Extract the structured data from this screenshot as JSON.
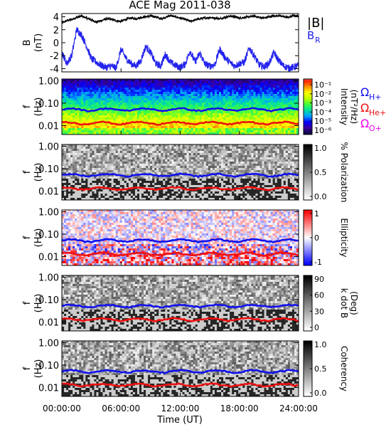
{
  "chart_data": [
    {
      "type": "line",
      "title": "ACE Mag 2011-038",
      "ylabel": "B",
      "ylabel_unit": "(nT)",
      "ylim": [
        -4.5,
        4.5
      ],
      "yticks": [
        "4",
        "2",
        "0",
        "-2",
        "-4"
      ],
      "yticks_values": [
        4,
        2,
        0,
        -2,
        -4
      ],
      "legend_placement": "right",
      "series": [
        {
          "name": "|B|",
          "color": "#000000",
          "x_hours": [
            0,
            0.5,
            1,
            1.5,
            2,
            2.5,
            3,
            3.5,
            4,
            4.5,
            5,
            5.5,
            6,
            6.5,
            7,
            7.5,
            8,
            8.5,
            9,
            9.5,
            10,
            10.5,
            11,
            11.5,
            12,
            12.5,
            13,
            13.5,
            14,
            14.5,
            15,
            15.5,
            16,
            16.5,
            17,
            17.5,
            18,
            18.5,
            19,
            19.5,
            20,
            20.5,
            21,
            21.5,
            22,
            22.5,
            23,
            23.5,
            24
          ],
          "values": [
            3.0,
            3.4,
            3.6,
            3.9,
            4.1,
            3.8,
            3.5,
            3.2,
            3.4,
            3.7,
            3.6,
            3.4,
            3.3,
            3.6,
            3.8,
            3.7,
            3.9,
            4.0,
            4.1,
            4.0,
            3.7,
            3.9,
            4.2,
            4.0,
            3.8,
            3.6,
            3.3,
            3.5,
            3.7,
            3.8,
            3.9,
            3.8,
            3.7,
            3.9,
            4.1,
            4.0,
            3.8,
            3.9,
            4.0,
            4.1,
            3.9,
            3.8,
            4.0,
            4.1,
            4.2,
            4.0,
            3.9,
            4.2,
            4.1
          ]
        },
        {
          "name": "B",
          "subscript": "R",
          "color": "#2222ee",
          "x_hours": [
            0,
            0.5,
            1,
            1.5,
            2,
            2.5,
            3,
            3.5,
            4,
            4.5,
            5,
            5.5,
            6,
            6.5,
            7,
            7.5,
            8,
            8.5,
            9,
            9.5,
            10,
            10.5,
            11,
            11.5,
            12,
            12.5,
            13,
            13.5,
            14,
            14.5,
            15,
            15.5,
            16,
            16.5,
            17,
            17.5,
            18,
            18.5,
            19,
            19.5,
            20,
            20.5,
            21,
            21.5,
            22,
            22.5,
            23,
            23.5,
            24
          ],
          "values": [
            -1.5,
            -3.2,
            -2.0,
            2.0,
            1.2,
            -0.5,
            -2.5,
            -3.0,
            -3.5,
            -3.8,
            -3.6,
            -3.9,
            -1.0,
            -2.4,
            -3.2,
            -3.6,
            -2.8,
            -0.6,
            -1.5,
            -3.2,
            -3.6,
            -1.8,
            -3.0,
            -3.5,
            -3.8,
            -3.3,
            -1.2,
            -3.0,
            -1.6,
            -3.3,
            -3.6,
            -3.4,
            -1.0,
            -2.2,
            -3.0,
            -3.6,
            -3.2,
            -3.0,
            -0.8,
            -2.0,
            -3.4,
            -3.7,
            -3.2,
            -1.5,
            -2.8,
            -3.6,
            -3.9,
            -3.8,
            -3.5
          ]
        }
      ],
      "x_unit": "hours UT"
    },
    {
      "type": "heatmap",
      "ylabel": "f",
      "ylabel_unit": "(Hz)",
      "yscale": "log",
      "ylim": [
        0.004,
        1.2
      ],
      "yticks": [
        "1.00",
        "0.10",
        "0.01"
      ],
      "yticks_values": [
        1.0,
        0.1,
        0.01
      ],
      "colorbar": {
        "label": "Intensity",
        "unit": "(nT²/Hz)",
        "scale": "log",
        "ticks": [
          "10⁻¹",
          "10⁻²",
          "10⁻³",
          "10⁻⁴",
          "10⁻⁵",
          "10⁻⁶"
        ],
        "tick_values": [
          0.1,
          0.01,
          0.001,
          0.0001,
          1e-05,
          1e-06
        ],
        "colors": [
          "#0a0a40",
          "#3a00a0",
          "#0000ff",
          "#00a0ff",
          "#00e0a0",
          "#40ff40",
          "#c0ff00",
          "#ffff00",
          "#ff9000",
          "#ff2000",
          "#ffffff"
        ]
      },
      "gyro_lines": [
        {
          "name": "Ω",
          "subscript": "H+",
          "color": "#1010ee",
          "freq_hz": 0.052
        },
        {
          "name": "Ω",
          "subscript": "He+",
          "color": "#ee1010",
          "freq_hz": 0.013
        },
        {
          "name": "Ω",
          "subscript": "O+",
          "color": "#ee00ee",
          "freq_hz": 0.0033
        }
      ]
    },
    {
      "type": "heatmap",
      "ylabel": "f",
      "ylabel_unit": "(Hz)",
      "yscale": "log",
      "ylim": [
        0.004,
        1.2
      ],
      "yticks": [
        "1.00",
        "0.10",
        "0.01"
      ],
      "yticks_values": [
        1.0,
        0.1,
        0.01
      ],
      "colorbar": {
        "label": "% Polarization",
        "scale": "linear",
        "range": [
          0.0,
          1.0
        ],
        "ticks": [
          "1.0",
          "0.5",
          "0.0"
        ],
        "tick_values": [
          1.0,
          0.5,
          0.0
        ],
        "colors": [
          "#ffffff",
          "#000000"
        ]
      }
    },
    {
      "type": "heatmap",
      "ylabel": "f",
      "ylabel_unit": "(Hz)",
      "yscale": "log",
      "ylim": [
        0.004,
        1.2
      ],
      "yticks": [
        "1.00",
        "0.10",
        "0.01"
      ],
      "yticks_values": [
        1.0,
        0.1,
        0.01
      ],
      "colorbar": {
        "label": "Ellipticity",
        "scale": "linear",
        "range": [
          -1,
          1
        ],
        "ticks": [
          "1",
          "0",
          "-1"
        ],
        "tick_values": [
          1,
          0,
          -1
        ],
        "colors": [
          "#0000ff",
          "#ffffff",
          "#ff0000"
        ]
      }
    },
    {
      "type": "heatmap",
      "ylabel": "f",
      "ylabel_unit": "(Hz)",
      "yscale": "log",
      "ylim": [
        0.004,
        1.2
      ],
      "yticks": [
        "1.00",
        "0.10",
        "0.01"
      ],
      "yticks_values": [
        1.0,
        0.1,
        0.01
      ],
      "colorbar": {
        "label": "k dot B",
        "unit": "(Deg)",
        "scale": "linear",
        "range": [
          0,
          90
        ],
        "ticks": [
          "90",
          "60",
          "30",
          "0"
        ],
        "tick_values": [
          90,
          60,
          30,
          0
        ],
        "colors": [
          "#ffffff",
          "#000000"
        ]
      }
    },
    {
      "type": "heatmap",
      "ylabel": "f",
      "ylabel_unit": "(Hz)",
      "yscale": "log",
      "ylim": [
        0.004,
        1.2
      ],
      "yticks": [
        "1.00",
        "0.10",
        "0.01"
      ],
      "yticks_values": [
        1.0,
        0.1,
        0.01
      ],
      "colorbar": {
        "label": "Coherency",
        "scale": "linear",
        "range": [
          0.0,
          1.0
        ],
        "ticks": [
          "1.0",
          "0.5",
          "0.0"
        ],
        "tick_values": [
          1.0,
          0.5,
          0.0
        ],
        "colors": [
          "#ffffff",
          "#000000"
        ]
      }
    }
  ],
  "x_axis": {
    "label": "Time (UT)",
    "range_hours": [
      0,
      24
    ],
    "ticks": [
      "00:00:00",
      "06:00:00",
      "12:00:00",
      "18:00:00",
      "24:00:00"
    ],
    "tick_hours": [
      0,
      6,
      12,
      18,
      24
    ]
  }
}
